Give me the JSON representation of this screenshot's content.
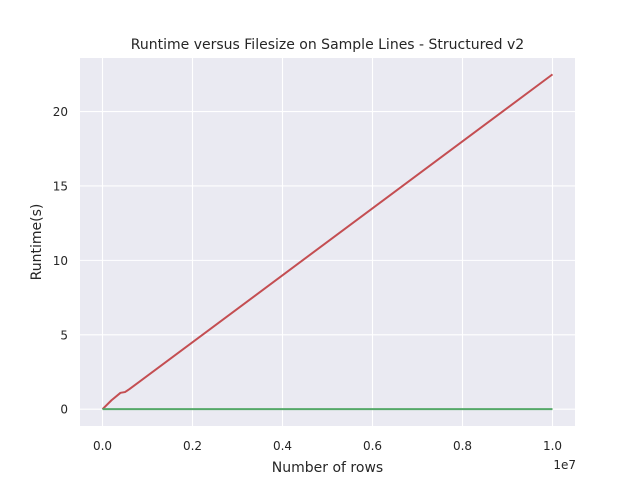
{
  "chart_data": {
    "type": "line",
    "title": "Runtime versus Filesize on Sample Lines - Structured v2",
    "xlabel": "Number of rows",
    "ylabel": "Runtime(s)",
    "x_offset_label": "1e7",
    "xlim": [
      -0.05,
      1.05
    ],
    "ylim": [
      -1.13,
      23.6
    ],
    "xticks": [
      0.0,
      0.2,
      0.4,
      0.6,
      0.8,
      1.0
    ],
    "xtick_labels": [
      "0.0",
      "0.2",
      "0.4",
      "0.6",
      "0.8",
      "1.0"
    ],
    "yticks": [
      0,
      5,
      10,
      15,
      20
    ],
    "ytick_labels": [
      "0",
      "5",
      "10",
      "15",
      "20"
    ],
    "grid": true,
    "legend": null,
    "colors": {
      "background": "#eaeaf2",
      "grid": "#ffffff",
      "red": "#c44e52",
      "green": "#55a868"
    },
    "series": [
      {
        "color": "#c44e52",
        "x": [
          0.0,
          0.02,
          0.04,
          0.05,
          0.06,
          1.0
        ],
        "y": [
          0.0,
          0.6,
          1.1,
          1.15,
          1.35,
          22.5
        ]
      },
      {
        "color": "#55a868",
        "x": [
          0.0,
          0.1,
          0.2,
          0.3,
          0.4,
          0.5,
          0.6,
          0.7,
          0.8,
          0.9,
          1.0
        ],
        "y": [
          0.0,
          0.0,
          0.0,
          0.0,
          0.0,
          0.0,
          0.0,
          0.0,
          0.0,
          0.0,
          0.0
        ]
      }
    ]
  }
}
